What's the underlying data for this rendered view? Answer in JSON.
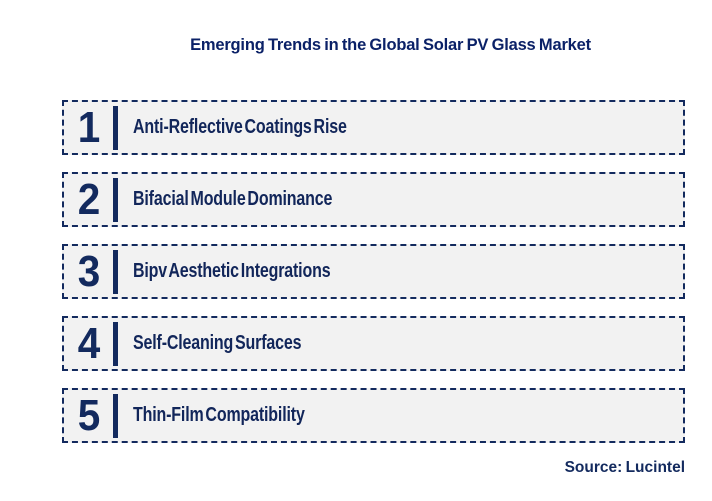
{
  "header": {
    "title": "Emerging Trends in the Global Solar PV Glass Market"
  },
  "trends": [
    {
      "rank": "1",
      "label": "Anti-Reflective Coatings Rise"
    },
    {
      "rank": "2",
      "label": "Bifacial Module Dominance"
    },
    {
      "rank": "3",
      "label": "Bipv Aesthetic Integrations"
    },
    {
      "rank": "4",
      "label": "Self-Cleaning Surfaces"
    },
    {
      "rank": "5",
      "label": "Thin-Film Compatibility"
    }
  ],
  "footer": {
    "source": "Source: Lucintel"
  },
  "colors": {
    "navy": "#132a5e",
    "title_navy": "#0b2167",
    "label_navy": "#12265a",
    "box_background": "#f2f2f2",
    "page_background": "#ffffff"
  }
}
